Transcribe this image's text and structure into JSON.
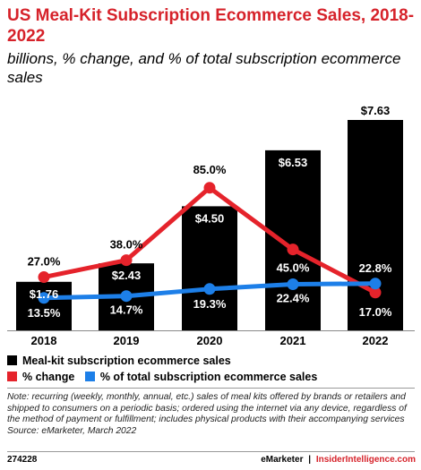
{
  "title": "US Meal-Kit Subscription Ecommerce Sales, 2018-2022",
  "subtitle": "billions, % change, and % of total subscription ecommerce sales",
  "chart_data": {
    "type": "bar",
    "categories": [
      "2018",
      "2019",
      "2020",
      "2021",
      "2022"
    ],
    "series": [
      {
        "name": "Meal-kit subscription ecommerce sales",
        "type": "bar",
        "values": [
          1.76,
          2.43,
          4.5,
          6.53,
          7.63
        ],
        "labels": [
          "$1.76",
          "$2.43",
          "$4.50",
          "$6.53",
          "$7.63"
        ],
        "color": "#000000"
      },
      {
        "name": "% change",
        "type": "line",
        "values": [
          27.0,
          38.0,
          85.0,
          45.0,
          17.0
        ],
        "labels": [
          "27.0%",
          "38.0%",
          "85.0%",
          "45.0%",
          "17.0%"
        ],
        "color": "#e5232b"
      },
      {
        "name": "% of total subscription ecommerce sales",
        "type": "line",
        "values": [
          13.5,
          14.7,
          19.3,
          22.4,
          22.8
        ],
        "labels": [
          "13.5%",
          "14.7%",
          "19.3%",
          "22.4%",
          "22.8%"
        ],
        "color": "#1d7fe8"
      }
    ]
  },
  "note": "Note: recurring (weekly, monthly, annual, etc.) sales of meal kits offered by brands or retailers and shipped to consumers on a periodic basis; ordered using the internet via any device, regardless of the method of payment or fulfillment; includes physical products with their accompanying services",
  "source": "Source: eMarketer, March 2022",
  "footer": {
    "id": "274228",
    "brand": "eMarketer",
    "separator": "|",
    "site": "InsiderIntelligence.com"
  }
}
